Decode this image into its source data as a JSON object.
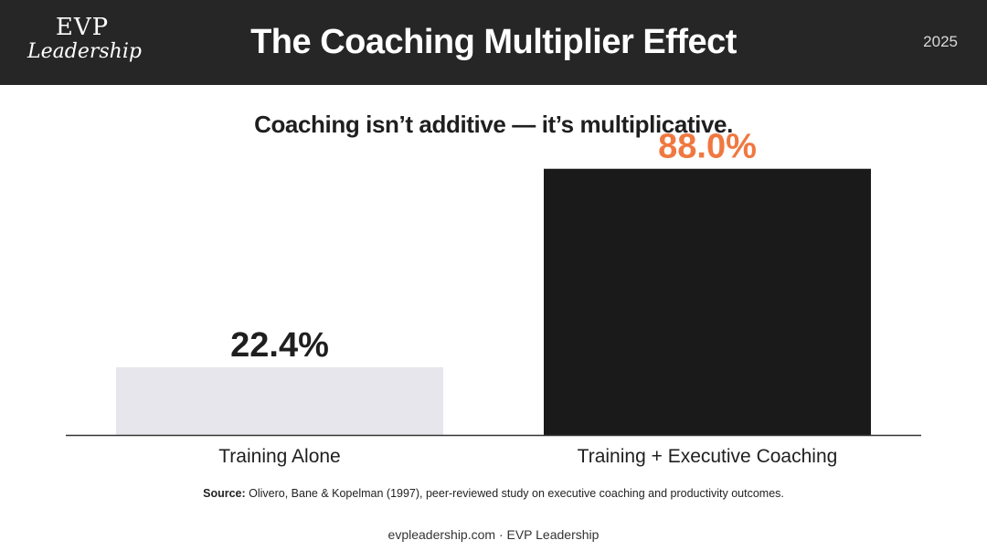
{
  "header": {
    "logo_top": "EVP",
    "logo_bottom": "Leadership",
    "title": "The Coaching Multiplier Effect",
    "year": "2025"
  },
  "subtitle": "Coaching isn’t additive — it’s multiplicative.",
  "chart_data": {
    "type": "bar",
    "categories": [
      "Training Alone",
      "Training + Executive Coaching"
    ],
    "values": [
      22.4,
      88.0
    ],
    "data_labels": [
      "22.4%",
      "88.0%"
    ],
    "title": "",
    "xlabel": "",
    "ylabel": "",
    "ylim": [
      0,
      100
    ],
    "grid": false,
    "colors": {
      "bars": [
        "#e6e6ec",
        "#1a1a1a"
      ],
      "labels": [
        "#1f1f1f",
        "#f07840"
      ],
      "axis": "#333333"
    }
  },
  "source": {
    "label": "Source:",
    "text": " Olivero, Bane & Kopelman (1997), peer-reviewed study on executive coaching and productivity outcomes."
  },
  "footer": "evpleadership.com · EVP Leadership"
}
